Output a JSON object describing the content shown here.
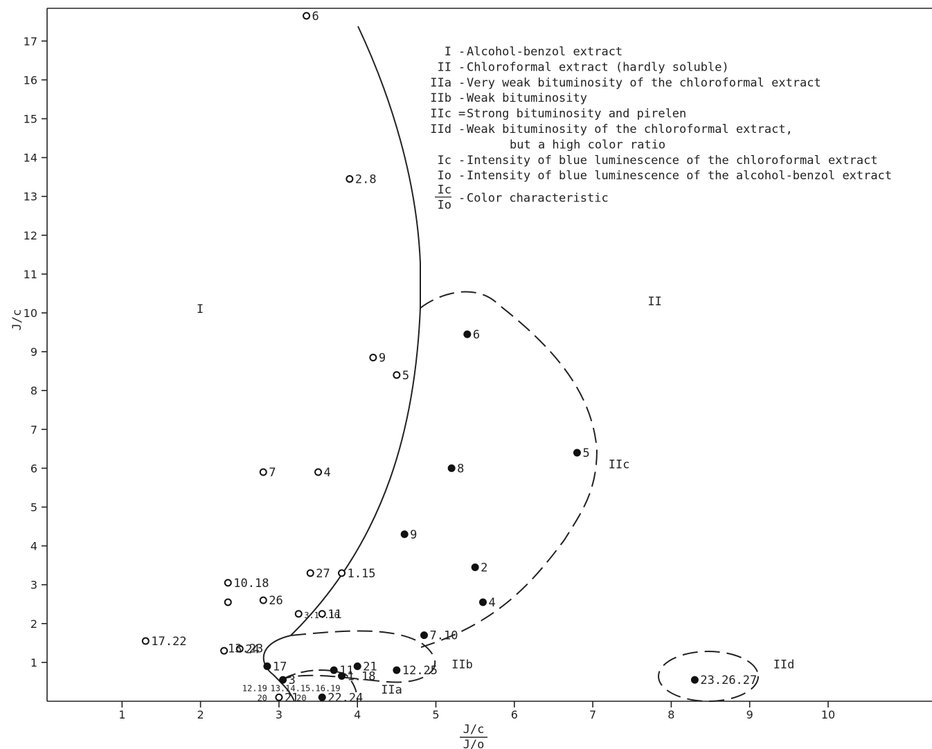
{
  "chart_data": {
    "type": "scatter",
    "xlabel_num": "J/c",
    "xlabel_den": "J/o",
    "ylabel": "J/c",
    "xlim": [
      0,
      11.5
    ],
    "ylim": [
      0,
      18
    ],
    "x_ticks": [
      1,
      2,
      3,
      4,
      5,
      6,
      7,
      8,
      9,
      10
    ],
    "y_ticks": [
      1,
      2,
      3,
      4,
      5,
      6,
      7,
      8,
      9,
      10,
      11,
      12,
      13,
      14,
      15,
      16,
      17
    ],
    "series": [
      {
        "marker": "open",
        "points": [
          {
            "x": 3.35,
            "y": 17.65,
            "label": "6"
          },
          {
            "x": 3.9,
            "y": 13.45,
            "label": "2.8"
          },
          {
            "x": 4.2,
            "y": 8.85,
            "label": "9"
          },
          {
            "x": 4.5,
            "y": 8.4,
            "label": "5"
          },
          {
            "x": 2.8,
            "y": 5.9,
            "label": "7"
          },
          {
            "x": 3.5,
            "y": 5.9,
            "label": "4"
          },
          {
            "x": 2.35,
            "y": 3.05,
            "label": "10.18"
          },
          {
            "x": 2.35,
            "y": 2.55,
            "label": ""
          },
          {
            "x": 2.8,
            "y": 2.6,
            "label": "26"
          },
          {
            "x": 3.4,
            "y": 3.3,
            "label": "27"
          },
          {
            "x": 3.8,
            "y": 3.3,
            "label": "1.15"
          },
          {
            "x": 3.25,
            "y": 2.25,
            "label": "3.14.16"
          },
          {
            "x": 3.55,
            "y": 2.25,
            "label": "11"
          },
          {
            "x": 1.3,
            "y": 1.55,
            "label": "17.22"
          },
          {
            "x": 2.3,
            "y": 1.3,
            "label": ""
          },
          {
            "x": 2.5,
            "y": 1.35,
            "label": "24"
          },
          {
            "x": 3.0,
            "y": 0.1,
            "label": "21"
          }
        ]
      },
      {
        "marker": "filled",
        "points": [
          {
            "x": 5.4,
            "y": 9.45,
            "label": "6"
          },
          {
            "x": 6.8,
            "y": 6.4,
            "label": "5"
          },
          {
            "x": 5.2,
            "y": 6.0,
            "label": "8"
          },
          {
            "x": 4.6,
            "y": 4.3,
            "label": "9"
          },
          {
            "x": 5.5,
            "y": 3.45,
            "label": "2"
          },
          {
            "x": 5.6,
            "y": 2.55,
            "label": "4"
          },
          {
            "x": 4.85,
            "y": 1.7,
            "label": "7.10"
          },
          {
            "x": 2.85,
            "y": 0.9,
            "label": "17"
          },
          {
            "x": 3.05,
            "y": 0.55,
            "label": "3"
          },
          {
            "x": 3.7,
            "y": 0.8,
            "label": "11"
          },
          {
            "x": 3.8,
            "y": 0.65,
            "label": "1.18"
          },
          {
            "x": 4.0,
            "y": 0.9,
            "label": "21"
          },
          {
            "x": 4.5,
            "y": 0.8,
            "label": "12.25"
          },
          {
            "x": 3.55,
            "y": 0.1,
            "label": "22.24"
          },
          {
            "x": 8.3,
            "y": 0.55,
            "label": "23.26.27"
          }
        ]
      }
    ],
    "extra_labels": [
      {
        "x": 2.8,
        "y": 1.35,
        "label": "13.23"
      },
      {
        "x": 2.85,
        "y": 0.35,
        "label": "12.19"
      },
      {
        "x": 2.85,
        "y": 0.1,
        "label": "20"
      },
      {
        "x": 3.35,
        "y": 0.1,
        "label": "20"
      },
      {
        "x": 3.42,
        "y": 0.35,
        "label": "13.14.15.16.19"
      }
    ],
    "regions": [
      {
        "name": "I",
        "x": 1.95,
        "y": 10.0
      },
      {
        "name": "II",
        "x": 7.7,
        "y": 10.2
      },
      {
        "name": "IIc",
        "x": 7.2,
        "y": 6.0
      },
      {
        "name": "IIb",
        "x": 5.2,
        "y": 0.85
      },
      {
        "name": "IIa",
        "x": 4.3,
        "y": 0.2
      },
      {
        "name": "IId",
        "x": 9.3,
        "y": 0.85
      }
    ],
    "legend": {
      "placement": "top-right",
      "items": [
        {
          "key": "I",
          "text": "Alcohol-benzol extract"
        },
        {
          "key": "II",
          "text": "Chloroformal extract (hardly soluble)"
        },
        {
          "key": "IIa",
          "text": "Very weak bituminosity of the chloroformal extract"
        },
        {
          "key": "IIb",
          "text": "Weak bituminosity"
        },
        {
          "key": "IIc",
          "text": "Strong bituminosity and pirelen",
          "sep": "="
        },
        {
          "key": "IId",
          "text": "Weak bituminosity of the chloroformal extract,",
          "cont": "but a high color ratio"
        },
        {
          "key": "Ic",
          "text": "Intensity of blue luminescence of the chloroformal extract"
        },
        {
          "key": "Io",
          "text": "Intensity of blue luminescence of the alcohol-benzol extract"
        },
        {
          "key_num": "Ic",
          "key_den": "Io",
          "text": "Color characteristic"
        }
      ]
    }
  }
}
